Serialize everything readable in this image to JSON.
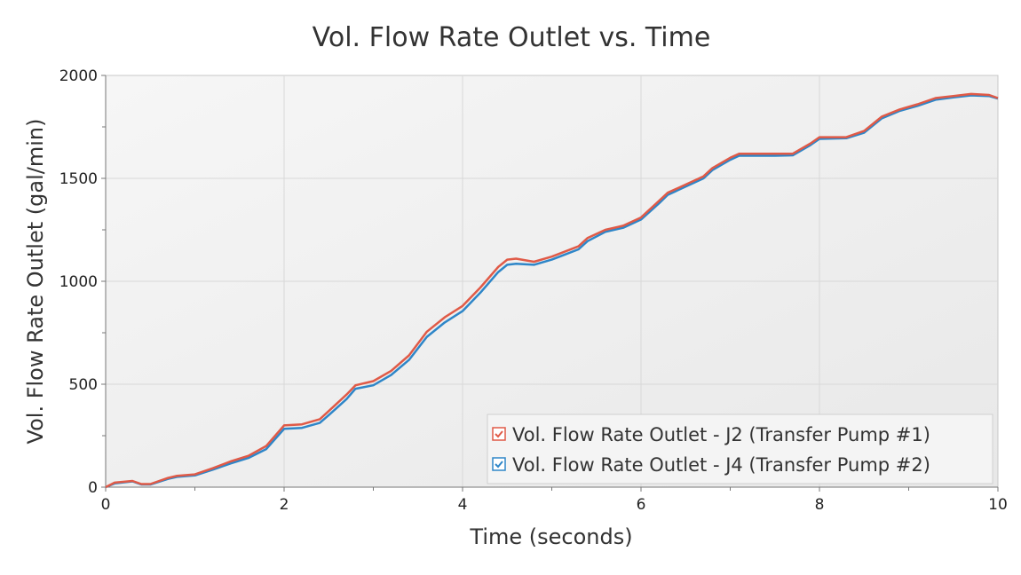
{
  "chart_data": {
    "type": "line",
    "title": "Vol. Flow Rate Outlet vs. Time",
    "xlabel": "Time (seconds)",
    "ylabel": "Vol. Flow Rate Outlet (gal/min)",
    "xlim": [
      0,
      10
    ],
    "ylim": [
      0,
      2000
    ],
    "xticks": [
      "0",
      "2",
      "4",
      "6",
      "8",
      "10"
    ],
    "yticks": [
      "0",
      "500",
      "1000",
      "1500",
      "2000"
    ],
    "grid": true,
    "legend_position": "bottom-right",
    "x": [
      0,
      0.1,
      0.3,
      0.4,
      0.5,
      0.7,
      0.8,
      1.0,
      1.2,
      1.4,
      1.6,
      1.8,
      2.0,
      2.2,
      2.4,
      2.5,
      2.7,
      2.8,
      3.0,
      3.2,
      3.4,
      3.6,
      3.8,
      4.0,
      4.2,
      4.4,
      4.5,
      4.6,
      4.8,
      5.0,
      5.3,
      5.4,
      5.6,
      5.8,
      6.0,
      6.2,
      6.3,
      6.5,
      6.7,
      6.8,
      7.0,
      7.1,
      7.5,
      7.7,
      7.9,
      8.0,
      8.3,
      8.5,
      8.7,
      8.9,
      9.1,
      9.3,
      9.5,
      9.7,
      9.9,
      10.0
    ],
    "series": [
      {
        "name": "Vol. Flow Rate Outlet - J2 (Transfer Pump #1)",
        "color": "#e05a47",
        "values": [
          0,
          22,
          30,
          15,
          15,
          45,
          55,
          62,
          92,
          125,
          152,
          200,
          300,
          305,
          330,
          370,
          450,
          495,
          515,
          565,
          640,
          755,
          825,
          880,
          970,
          1070,
          1105,
          1110,
          1095,
          1120,
          1170,
          1210,
          1250,
          1270,
          1310,
          1390,
          1430,
          1470,
          1510,
          1550,
          1600,
          1620,
          1620,
          1620,
          1670,
          1700,
          1700,
          1730,
          1800,
          1835,
          1860,
          1890,
          1900,
          1910,
          1905,
          1890
        ]
      },
      {
        "name": "Vol. Flow Rate Outlet - J4 (Transfer Pump #2)",
        "color": "#2e86c8",
        "values": [
          0,
          18,
          28,
          13,
          13,
          40,
          50,
          57,
          85,
          115,
          142,
          185,
          283,
          288,
          312,
          350,
          428,
          478,
          495,
          545,
          618,
          730,
          800,
          855,
          945,
          1045,
          1080,
          1085,
          1080,
          1105,
          1155,
          1195,
          1240,
          1260,
          1300,
          1378,
          1420,
          1460,
          1500,
          1540,
          1590,
          1610,
          1610,
          1612,
          1662,
          1692,
          1695,
          1722,
          1792,
          1828,
          1852,
          1882,
          1893,
          1903,
          1900,
          1888
        ]
      }
    ]
  }
}
